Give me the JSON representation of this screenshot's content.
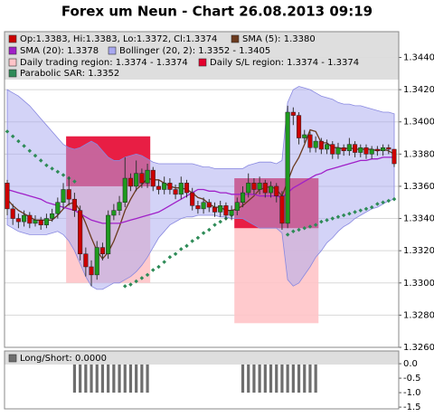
{
  "chart_data": [
    {
      "type": "candlestick",
      "title": "Forex um Neun - Chart 26.08.2013 09:19",
      "ylim": [
        1.326,
        1.3456
      ],
      "yticks": [
        {
          "value": 1.326,
          "label": "1.3260"
        },
        {
          "value": 1.328,
          "label": "1.3280"
        },
        {
          "value": 1.33,
          "label": "1.3300"
        },
        {
          "value": 1.332,
          "label": "1.3320"
        },
        {
          "value": 1.334,
          "label": "1.3340"
        },
        {
          "value": 1.336,
          "label": "1.3360"
        },
        {
          "value": 1.338,
          "label": "1.3380"
        },
        {
          "value": 1.34,
          "label": "1.3400"
        },
        {
          "value": 1.342,
          "label": "1.3420"
        },
        {
          "value": 1.344,
          "label": "1.3440"
        }
      ],
      "grid": true,
      "ohlc": {
        "name": "Op:1.3383, Hi:1.3383, Lo:1.3372, Cl:1.3374",
        "color": "#cc0000",
        "up_color": "#1e9a1e",
        "open": [
          1.3362,
          1.3346,
          1.334,
          1.3338,
          1.3342,
          1.3337,
          1.3339,
          1.3336,
          1.334,
          1.3343,
          1.335,
          1.3358,
          1.3352,
          1.3345,
          1.3318,
          1.331,
          1.3305,
          1.3322,
          1.3318,
          1.3342,
          1.3345,
          1.335,
          1.3365,
          1.336,
          1.3368,
          1.3362,
          1.337,
          1.336,
          1.3358,
          1.3362,
          1.3358,
          1.3355,
          1.3362,
          1.3356,
          1.3348,
          1.3346,
          1.335,
          1.3347,
          1.3344,
          1.3348,
          1.3342,
          1.3345,
          1.335,
          1.3356,
          1.3362,
          1.3358,
          1.3362,
          1.3356,
          1.336,
          1.3354,
          1.3337,
          1.3406,
          1.3404,
          1.339,
          1.3392,
          1.3384,
          1.3388,
          1.3383,
          1.3386,
          1.338,
          1.3384,
          1.3382,
          1.3386,
          1.3381,
          1.3384,
          1.338,
          1.3383,
          1.3382,
          1.3384,
          1.3383
        ],
        "high": [
          1.3364,
          1.3349,
          1.3343,
          1.3345,
          1.3344,
          1.3342,
          1.3341,
          1.3343,
          1.3346,
          1.3353,
          1.3362,
          1.3366,
          1.3356,
          1.3348,
          1.3322,
          1.3314,
          1.3326,
          1.3325,
          1.3345,
          1.3349,
          1.3354,
          1.3378,
          1.3368,
          1.3376,
          1.3371,
          1.3374,
          1.3372,
          1.3364,
          1.3366,
          1.3365,
          1.3361,
          1.3366,
          1.3364,
          1.3359,
          1.3351,
          1.3353,
          1.3352,
          1.335,
          1.3351,
          1.335,
          1.3348,
          1.3353,
          1.336,
          1.3368,
          1.3365,
          1.3366,
          1.3364,
          1.3363,
          1.3362,
          1.3357,
          1.341,
          1.3409,
          1.3406,
          1.3395,
          1.3394,
          1.3391,
          1.339,
          1.3389,
          1.3388,
          1.3387,
          1.3386,
          1.339,
          1.3388,
          1.3386,
          1.3386,
          1.3385,
          1.3385,
          1.3386,
          1.3386,
          1.3383
        ],
        "low": [
          1.3342,
          1.3336,
          1.3334,
          1.3335,
          1.3334,
          1.3335,
          1.3333,
          1.3334,
          1.3338,
          1.334,
          1.3346,
          1.3348,
          1.3341,
          1.3314,
          1.3304,
          1.3298,
          1.3302,
          1.3314,
          1.3315,
          1.3339,
          1.3342,
          1.3347,
          1.3357,
          1.3357,
          1.3359,
          1.3359,
          1.3357,
          1.3355,
          1.3355,
          1.3355,
          1.3352,
          1.3352,
          1.3353,
          1.3345,
          1.3343,
          1.3343,
          1.3344,
          1.3341,
          1.3341,
          1.3339,
          1.3339,
          1.3342,
          1.3347,
          1.3353,
          1.3355,
          1.3355,
          1.3353,
          1.3353,
          1.335,
          1.3333,
          1.3334,
          1.3398,
          1.3386,
          1.3387,
          1.3381,
          1.3381,
          1.338,
          1.338,
          1.3377,
          1.3377,
          1.3379,
          1.3379,
          1.3378,
          1.3378,
          1.3377,
          1.3377,
          1.3379,
          1.3379,
          1.338,
          1.3372
        ],
        "close": [
          1.3346,
          1.334,
          1.3338,
          1.3342,
          1.3337,
          1.3339,
          1.3336,
          1.334,
          1.3343,
          1.335,
          1.3358,
          1.3352,
          1.3345,
          1.3318,
          1.331,
          1.3305,
          1.3322,
          1.3318,
          1.3342,
          1.3345,
          1.335,
          1.3365,
          1.336,
          1.3368,
          1.3362,
          1.337,
          1.336,
          1.3358,
          1.3362,
          1.3358,
          1.3355,
          1.3362,
          1.3356,
          1.3348,
          1.3346,
          1.335,
          1.3347,
          1.3344,
          1.3348,
          1.3342,
          1.3345,
          1.335,
          1.3356,
          1.3362,
          1.3358,
          1.3362,
          1.3356,
          1.336,
          1.3354,
          1.3337,
          1.3406,
          1.3404,
          1.339,
          1.3392,
          1.3384,
          1.3388,
          1.3383,
          1.3386,
          1.338,
          1.3384,
          1.3382,
          1.3386,
          1.3381,
          1.3384,
          1.338,
          1.3383,
          1.3382,
          1.3384,
          1.3383,
          1.3374
        ]
      },
      "lines": [
        {
          "name": "SMA (5): 1.3380",
          "color": "#6b3a1e",
          "values": [
            1.3352,
            1.3348,
            1.3345,
            1.3343,
            1.3341,
            1.3339,
            1.3339,
            1.3339,
            1.3339,
            1.3342,
            1.3346,
            1.3349,
            1.335,
            1.3345,
            1.3337,
            1.3328,
            1.332,
            1.3315,
            1.3319,
            1.3326,
            1.3335,
            1.3345,
            1.3352,
            1.3358,
            1.3361,
            1.3365,
            1.3364,
            1.3364,
            1.3362,
            1.336,
            1.3359,
            1.3359,
            1.3358,
            1.3356,
            1.3353,
            1.3352,
            1.3349,
            1.3347,
            1.3347,
            1.3345,
            1.3345,
            1.3346,
            1.3348,
            1.3351,
            1.3354,
            1.3358,
            1.3359,
            1.336,
            1.3358,
            1.3354,
            1.3363,
            1.3372,
            1.3378,
            1.3386,
            1.3395,
            1.3394,
            1.3387,
            1.3387,
            1.3384,
            1.3384,
            1.3383,
            1.3384,
            1.3383,
            1.3383,
            1.3383,
            1.3383,
            1.3382,
            1.3383,
            1.3382,
            1.338
          ]
        },
        {
          "name": "SMA (20): 1.3378",
          "color": "#a020c8",
          "values": [
            1.3358,
            1.3357,
            1.3356,
            1.3355,
            1.3354,
            1.3353,
            1.3352,
            1.335,
            1.3349,
            1.3348,
            1.3347,
            1.3346,
            1.3345,
            1.3343,
            1.3341,
            1.3339,
            1.3338,
            1.3337,
            1.3337,
            1.3337,
            1.3337,
            1.3338,
            1.3339,
            1.334,
            1.3341,
            1.3342,
            1.3343,
            1.3344,
            1.3346,
            1.3348,
            1.335,
            1.3352,
            1.3354,
            1.3356,
            1.3358,
            1.3358,
            1.3357,
            1.3357,
            1.3356,
            1.3356,
            1.3355,
            1.3355,
            1.3355,
            1.3355,
            1.3355,
            1.3354,
            1.3354,
            1.3354,
            1.3354,
            1.3353,
            1.3356,
            1.3359,
            1.3361,
            1.3363,
            1.3365,
            1.3367,
            1.3368,
            1.337,
            1.3371,
            1.3372,
            1.3373,
            1.3374,
            1.3375,
            1.3376,
            1.3376,
            1.3377,
            1.3377,
            1.3378,
            1.3378,
            1.3378
          ]
        }
      ],
      "band": {
        "name": "Bollinger (20, 2): 1.3352 - 1.3405",
        "color": "#a8a8f0",
        "upper": [
          1.342,
          1.3418,
          1.3416,
          1.3413,
          1.341,
          1.3406,
          1.3402,
          1.3398,
          1.3394,
          1.339,
          1.3386,
          1.3384,
          1.3383,
          1.3384,
          1.3386,
          1.3388,
          1.3386,
          1.3382,
          1.3378,
          1.3376,
          1.3376,
          1.3378,
          1.3379,
          1.338,
          1.3379,
          1.3377,
          1.3375,
          1.3374,
          1.3374,
          1.3374,
          1.3374,
          1.3374,
          1.3374,
          1.3374,
          1.3373,
          1.3372,
          1.3372,
          1.3371,
          1.3371,
          1.3371,
          1.3371,
          1.3371,
          1.3371,
          1.3373,
          1.3374,
          1.3375,
          1.3375,
          1.3375,
          1.3374,
          1.3376,
          1.3412,
          1.342,
          1.3422,
          1.3421,
          1.342,
          1.3418,
          1.3416,
          1.3415,
          1.3414,
          1.3412,
          1.3411,
          1.3411,
          1.341,
          1.341,
          1.3409,
          1.3408,
          1.3407,
          1.3406,
          1.3406,
          1.3405
        ],
        "lower": [
          1.3336,
          1.3334,
          1.3332,
          1.3331,
          1.333,
          1.333,
          1.333,
          1.333,
          1.3331,
          1.3332,
          1.333,
          1.3326,
          1.332,
          1.3312,
          1.3304,
          1.3298,
          1.3296,
          1.3296,
          1.3298,
          1.33,
          1.33,
          1.3302,
          1.3304,
          1.3307,
          1.3311,
          1.3316,
          1.3322,
          1.3328,
          1.3332,
          1.3336,
          1.3338,
          1.334,
          1.3341,
          1.3341,
          1.3342,
          1.3342,
          1.3342,
          1.3342,
          1.3341,
          1.3341,
          1.334,
          1.334,
          1.334,
          1.3338,
          1.3336,
          1.3334,
          1.3334,
          1.3334,
          1.3334,
          1.3331,
          1.3302,
          1.3298,
          1.33,
          1.3305,
          1.331,
          1.3316,
          1.332,
          1.3325,
          1.3328,
          1.3332,
          1.3335,
          1.3337,
          1.334,
          1.3342,
          1.3344,
          1.3346,
          1.3347,
          1.3349,
          1.3351,
          1.3352
        ]
      },
      "regions": [
        {
          "name": "Daily trading region: 1.3374 - 1.3374",
          "color": "#ffc4c8",
          "boxes": [
            {
              "from": 11,
              "to": 25,
              "low": 1.33,
              "high": 1.3391
            },
            {
              "from": 41,
              "to": 55,
              "low": 1.3275,
              "high": 1.3365
            }
          ]
        },
        {
          "name": "Daily S/L region: 1.3374 - 1.3374",
          "color": "#e4002c",
          "boxes": [
            {
              "from": 11,
              "to": 25,
              "low": 1.336,
              "high": 1.3391
            },
            {
              "from": 41,
              "to": 55,
              "low": 1.3334,
              "high": 1.3365
            }
          ]
        }
      ],
      "sar": {
        "name": "Parabolic SAR: 1.3352",
        "color": "#2e8b57",
        "values": [
          1.3394,
          1.3391,
          1.3388,
          1.3385,
          1.3382,
          1.3379,
          1.3376,
          1.3373,
          1.3371,
          1.3369,
          1.3367,
          1.3365,
          1.3363,
          null,
          null,
          null,
          null,
          null,
          null,
          null,
          null,
          1.3298,
          1.3299,
          1.3301,
          1.3303,
          1.3305,
          1.3308,
          1.331,
          1.3313,
          1.3316,
          1.3318,
          1.3321,
          1.3323,
          1.3326,
          1.3328,
          1.3331,
          1.3333,
          1.3336,
          1.3338,
          1.334,
          1.3342,
          null,
          null,
          null,
          null,
          null,
          null,
          null,
          null,
          null,
          1.333,
          1.3332,
          1.3333,
          1.3334,
          1.3335,
          1.3336,
          1.3338,
          1.3339,
          1.334,
          1.3341,
          1.3342,
          1.3343,
          1.3344,
          1.3345,
          1.3346,
          1.3347,
          1.3349,
          1.335,
          1.3351,
          1.3352
        ]
      }
    },
    {
      "type": "bar",
      "ylim": [
        -1.56,
        0.44
      ],
      "yticks": [
        {
          "value": 0,
          "label": "0.0"
        },
        {
          "value": -0.5,
          "label": "-0.5"
        },
        {
          "value": -1,
          "label": "-1.0"
        },
        {
          "value": -1.5,
          "label": "-1.5"
        }
      ],
      "series": [
        {
          "name": "Long/Short: 0.0000",
          "color": "#6e6e6e",
          "values": [
            0,
            0,
            0,
            0,
            0,
            0,
            0,
            0,
            0,
            0,
            0,
            0,
            -1,
            -1,
            -1,
            -1,
            -1,
            -1,
            -1,
            -1,
            -1,
            -1,
            -1,
            -1,
            -1,
            -1,
            0,
            0,
            0,
            0,
            0,
            0,
            0,
            0,
            0,
            0,
            0,
            0,
            0,
            0,
            0,
            0,
            -1,
            -1,
            -1,
            -1,
            -1,
            -1,
            -1,
            -1,
            -1,
            -1,
            -1,
            -1,
            -1,
            -1,
            0,
            0,
            0,
            0,
            0,
            0,
            0,
            0,
            0,
            0,
            0,
            0,
            0,
            0
          ]
        }
      ]
    }
  ]
}
